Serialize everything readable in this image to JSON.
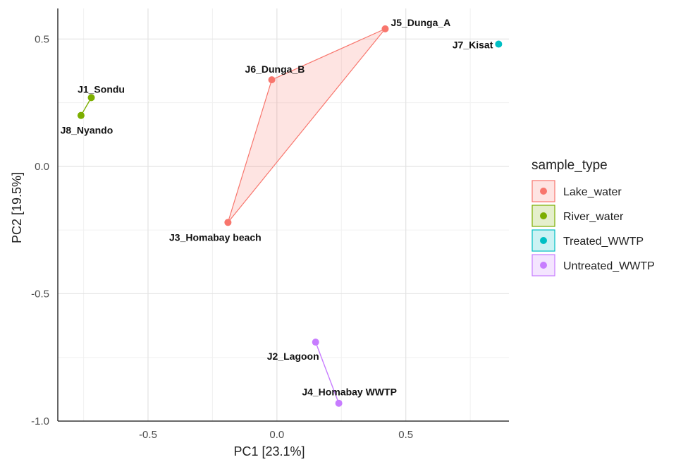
{
  "chart_data": {
    "type": "scatter",
    "xlabel": "PC1 [23.1%]",
    "ylabel": "PC2 [19.5%]",
    "xlim": [
      -0.85,
      0.9
    ],
    "ylim": [
      -1.0,
      0.62
    ],
    "x_ticks": [
      -0.5,
      0.0,
      0.5
    ],
    "x_tick_labels": [
      "-0.5",
      "0.0",
      "0.5"
    ],
    "y_ticks": [
      0.5,
      0.0,
      -0.5,
      -1.0
    ],
    "y_tick_labels": [
      "0.5",
      "0.0",
      "-0.5",
      "-1.0"
    ],
    "grid": true,
    "legend_position": "right",
    "legend_title": "sample_type",
    "series": [
      {
        "name": "Lake_water",
        "color": "#F8766D",
        "hull": true,
        "points": [
          {
            "label": "J5_Dunga_A",
            "x": 0.42,
            "y": 0.54
          },
          {
            "label": "J6_Dunga_B",
            "x": -0.02,
            "y": 0.34
          },
          {
            "label": "J3_Homabay beach",
            "x": -0.19,
            "y": -0.22
          }
        ]
      },
      {
        "name": "River_water",
        "color": "#7CAE00",
        "hull": true,
        "points": [
          {
            "label": "J1_Sondu",
            "x": -0.72,
            "y": 0.27
          },
          {
            "label": "J8_Nyando",
            "x": -0.76,
            "y": 0.2
          }
        ]
      },
      {
        "name": "Treated_WWTP",
        "color": "#00BFC4",
        "hull": false,
        "points": [
          {
            "label": "J7_Kisat",
            "x": 0.86,
            "y": 0.48
          }
        ]
      },
      {
        "name": "Untreated_WWTP",
        "color": "#C77CFF",
        "hull": true,
        "points": [
          {
            "label": "J2_Lagoon",
            "x": 0.15,
            "y": -0.69
          },
          {
            "label": "J4_Homabay WWTP",
            "x": 0.24,
            "y": -0.93
          }
        ]
      }
    ]
  }
}
